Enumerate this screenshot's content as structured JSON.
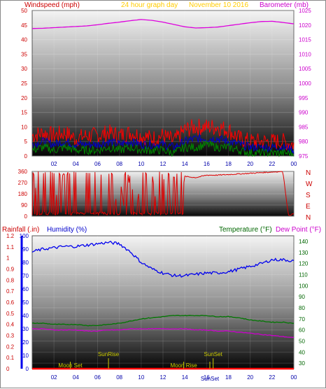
{
  "header": {
    "windspeed_title": "Windspeed (mph)",
    "period_title": "24 hour graph day",
    "date_title": "November 10 2016",
    "barometer_title": "Barometer (mb)"
  },
  "panel3_header": {
    "rainfall_title": "Rainfall (.in)",
    "humidity_title": "Humidity (%)",
    "temperature_title": "Temperature (°F)",
    "dewpoint_title": "Dew Point (°F)"
  },
  "compass": [
    "N",
    "W",
    "S",
    "E",
    "N"
  ],
  "colors": {
    "wind_speed": "#ff0000",
    "wind_avg": "#0000cc",
    "wind_low": "#008800",
    "barometer": "#dd00dd",
    "direction": "#dd0000",
    "humidity": "#0000ee",
    "temperature": "#007700",
    "dewpoint": "#cc00cc",
    "rainfall": "#ff0000",
    "header_red": "#cc0000",
    "header_yellow": "#ffcc00",
    "header_magenta": "#cc00cc",
    "astro_label": "#cccc00"
  },
  "chart_data": [
    {
      "type": "line",
      "panel": "wind-barometer",
      "x_ticks": [
        "02",
        "04",
        "06",
        "08",
        "10",
        "12",
        "14",
        "16",
        "18",
        "20",
        "22",
        "00"
      ],
      "y_left_ticks": [
        "0",
        "5",
        "10",
        "15",
        "20",
        "25",
        "30",
        "35",
        "40",
        "45",
        "50"
      ],
      "y_right_ticks": [
        "975",
        "980",
        "985",
        "990",
        "995",
        "1000",
        "1005",
        "1010",
        "1015",
        "1020",
        "1025"
      ],
      "ylim_left": [
        0,
        50
      ],
      "ylim_right": [
        975,
        1025
      ],
      "xlim": [
        0,
        24
      ],
      "series": [
        {
          "role": "barometer",
          "axis": "right",
          "x": [
            0,
            1,
            2,
            3,
            4,
            5,
            6,
            7,
            8,
            9,
            10,
            11,
            12,
            13,
            14,
            15,
            16,
            17,
            18,
            19,
            20,
            21,
            22,
            23,
            24
          ],
          "values": [
            1018.8,
            1018.9,
            1019.1,
            1019.3,
            1019.5,
            1019.7,
            1020.1,
            1020.6,
            1021.0,
            1021.5,
            1021.9,
            1021.6,
            1021.0,
            1020.2,
            1019.4,
            1019.0,
            1019.1,
            1019.3,
            1019.8,
            1020.3,
            1020.8,
            1021.2,
            1021.3,
            1020.9,
            1020.4
          ]
        },
        {
          "role": "wind_speed",
          "axis": "left",
          "x": [
            0,
            1,
            2,
            3,
            4,
            5,
            6,
            7,
            8,
            9,
            10,
            11,
            12,
            13,
            14,
            15,
            16,
            17,
            18,
            19,
            20,
            21,
            22,
            23,
            24
          ],
          "values": [
            7,
            8,
            7,
            8,
            6,
            7,
            7,
            8,
            7,
            8,
            7,
            6,
            7,
            5,
            9,
            10,
            10,
            10,
            9,
            6,
            5,
            5,
            5,
            5,
            4
          ]
        },
        {
          "role": "wind_avg",
          "axis": "left",
          "x": [
            0,
            1,
            2,
            3,
            4,
            5,
            6,
            7,
            8,
            9,
            10,
            11,
            12,
            13,
            14,
            15,
            16,
            17,
            18,
            19,
            20,
            21,
            22,
            23,
            24
          ],
          "values": [
            4,
            5,
            4,
            5,
            4,
            4,
            4,
            5,
            4,
            5,
            4,
            4,
            4,
            3,
            5,
            6,
            6,
            6,
            5,
            4,
            3,
            3,
            3,
            3,
            2
          ]
        },
        {
          "role": "wind_low",
          "axis": "left",
          "x": [
            0,
            1,
            2,
            3,
            4,
            5,
            6,
            7,
            8,
            9,
            10,
            11,
            12,
            13,
            14,
            15,
            16,
            17,
            18,
            19,
            20,
            21,
            22,
            23,
            24
          ],
          "values": [
            2,
            3,
            2,
            3,
            2,
            2,
            2,
            3,
            2,
            3,
            2,
            2,
            2,
            1,
            3,
            3,
            4,
            3,
            3,
            2,
            1,
            1,
            1,
            1,
            1
          ]
        }
      ]
    },
    {
      "type": "line",
      "panel": "wind-direction",
      "y_ticks": [
        "0",
        "90",
        "180",
        "270",
        "360"
      ],
      "ylim": [
        0,
        360
      ],
      "xlim": [
        0,
        24
      ],
      "series": [
        {
          "role": "direction",
          "x": [
            0,
            0.5,
            1,
            1.5,
            2,
            2.5,
            3,
            3.5,
            4,
            4.5,
            5,
            5.5,
            6,
            6.5,
            7,
            7.5,
            8,
            8.5,
            9,
            9.5,
            10,
            10.5,
            11,
            11.5,
            12,
            12.5,
            13,
            13.5,
            14,
            15,
            16,
            17,
            18,
            19,
            20,
            21,
            22,
            23,
            23.5,
            24
          ],
          "values": [
            10,
            350,
            20,
            10,
            15,
            340,
            20,
            10,
            15,
            20,
            30,
            20,
            30,
            40,
            30,
            25,
            340,
            20,
            350,
            15,
            330,
            20,
            345,
            15,
            350,
            20,
            340,
            10,
            320,
            310,
            330,
            330,
            335,
            340,
            345,
            350,
            355,
            360,
            5,
            20
          ]
        }
      ]
    },
    {
      "type": "line",
      "panel": "temperature-humidity",
      "x_ticks": [
        "02",
        "04",
        "06",
        "08",
        "10",
        "12",
        "14",
        "16",
        "18",
        "20",
        "22",
        "00"
      ],
      "y_rain_ticks": [
        "0",
        "0.1",
        "0.2",
        "0.3",
        "0.4",
        "0.5",
        "0.6",
        "0.7",
        "0.8",
        "0.9",
        "1",
        "1.1",
        "1.2"
      ],
      "y_humidity_ticks": [
        "0",
        "10",
        "20",
        "30",
        "40",
        "50",
        "60",
        "70",
        "80",
        "90",
        "100"
      ],
      "y_temp_ticks": [
        "30",
        "40",
        "50",
        "60",
        "70",
        "80",
        "90",
        "100",
        "110",
        "120",
        "130",
        "140"
      ],
      "ylim_rain": [
        0,
        1.2
      ],
      "ylim_humidity": [
        0,
        100
      ],
      "ylim_temp": [
        25,
        145
      ],
      "xlim": [
        0,
        24
      ],
      "series": [
        {
          "role": "humidity",
          "axis": "humidity",
          "x": [
            0,
            1,
            2,
            3,
            4,
            5,
            6,
            7,
            8,
            9,
            10,
            11,
            12,
            13,
            14,
            15,
            16,
            17,
            18,
            19,
            20,
            21,
            22,
            23,
            24
          ],
          "values": [
            88,
            90,
            91,
            92,
            92,
            93,
            94,
            95,
            94,
            88,
            80,
            75,
            72,
            70,
            70,
            71,
            72,
            72,
            73,
            75,
            77,
            79,
            82,
            82,
            81
          ]
        },
        {
          "role": "temperature",
          "axis": "temp",
          "x": [
            0,
            1,
            2,
            3,
            4,
            5,
            6,
            7,
            8,
            9,
            10,
            11,
            12,
            13,
            14,
            15,
            16,
            17,
            18,
            19,
            20,
            21,
            22,
            23,
            24
          ],
          "values": [
            66,
            66,
            65,
            65,
            65,
            64,
            64,
            65,
            66,
            68,
            70,
            71,
            72,
            73,
            73,
            73,
            73,
            72,
            72,
            71,
            69,
            68,
            67,
            67,
            66
          ]
        },
        {
          "role": "dewpoint",
          "axis": "temp",
          "x": [
            0,
            1,
            2,
            3,
            4,
            5,
            6,
            7,
            8,
            9,
            10,
            11,
            12,
            13,
            14,
            15,
            16,
            17,
            18,
            19,
            20,
            21,
            22,
            23,
            24
          ],
          "values": [
            61,
            61,
            60,
            60,
            60,
            59,
            59,
            60,
            60,
            61,
            61,
            61,
            61,
            61,
            61,
            60,
            60,
            59,
            59,
            58,
            57,
            56,
            55,
            54,
            53
          ]
        },
        {
          "role": "rainfall",
          "axis": "rain",
          "x": [
            0,
            24
          ],
          "values": [
            0,
            0
          ]
        }
      ],
      "annotations": [
        {
          "text": "Moon Set",
          "x": 3.5,
          "row": "bottom"
        },
        {
          "text": "SunRise",
          "x": 7.0,
          "row": "top"
        },
        {
          "text": "Moon Rise",
          "x": 13.9,
          "row": "bottom"
        },
        {
          "text": "SunSet",
          "x": 16.6,
          "row": "top"
        },
        {
          "text": "SunSet",
          "x": 16.3,
          "row": "bottom2"
        }
      ]
    }
  ]
}
